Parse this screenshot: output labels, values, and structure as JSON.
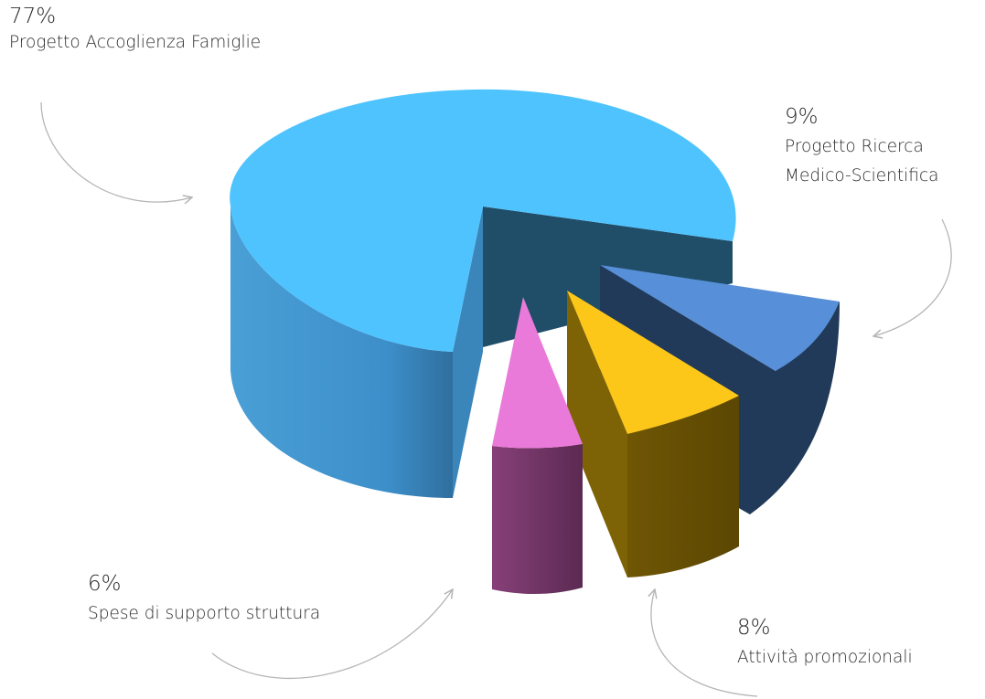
{
  "colors": {
    "background": "#ffffff",
    "arrow": "#b5b5b5",
    "label_text": "#2b2b2b"
  },
  "chart_data": {
    "type": "pie",
    "style": "3d-exploded",
    "title": "",
    "slices": [
      {
        "label": "Progetto Accoglienza Famiglie",
        "value": 77,
        "display": "77%",
        "color": "#4fc3fd"
      },
      {
        "label": "Progetto Ricerca Medico-Scientifica",
        "value": 9,
        "display": "9%",
        "color": "#578fd8"
      },
      {
        "label": "Attività promozionali",
        "value": 8,
        "display": "8%",
        "color": "#fdc71a"
      },
      {
        "label": "Spese di supporto struttura",
        "value": 6,
        "display": "6%",
        "color": "#e97ad9"
      }
    ]
  },
  "labels": {
    "accoglienza": {
      "percent": "77%",
      "lines": [
        "Progetto Accoglienza Famiglie"
      ]
    },
    "ricerca": {
      "percent": "9%",
      "lines": [
        "Progetto Ricerca",
        "Medico-Scientifica"
      ]
    },
    "promozionali": {
      "percent": "8%",
      "lines": [
        "Attività promozionali"
      ]
    },
    "supporto": {
      "percent": "6%",
      "lines": [
        "Spese di supporto struttura"
      ]
    }
  }
}
